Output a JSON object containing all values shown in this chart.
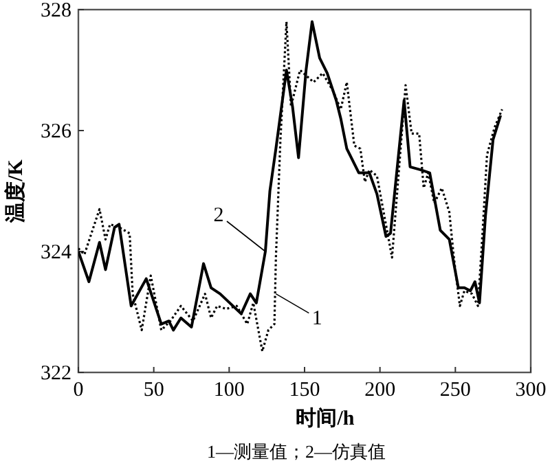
{
  "chart_data": {
    "type": "line",
    "xlabel": "时间/h",
    "ylabel": "温度/K",
    "xlim": [
      0,
      300
    ],
    "ylim": [
      322,
      328
    ],
    "xticks": [
      0,
      50,
      100,
      150,
      200,
      250,
      300
    ],
    "yticks": [
      322,
      324,
      326,
      328
    ],
    "grid": false,
    "marker": "none",
    "series": [
      {
        "color": "#000000",
        "line_style": "dotted",
        "x": [
          0,
          4,
          14,
          18,
          21,
          27,
          34,
          36,
          42,
          48,
          55,
          61,
          68,
          76,
          84,
          88,
          92,
          98,
          105,
          112,
          116,
          122,
          126,
          130,
          131,
          134,
          138,
          141,
          147,
          156,
          162,
          169,
          174,
          178,
          183,
          187,
          190,
          193,
          198,
          208,
          217,
          221,
          226,
          229,
          232,
          236,
          241,
          246,
          249,
          253,
          256,
          261,
          265,
          268,
          271,
          276,
          281
        ],
        "values": [
          324.05,
          323.95,
          324.7,
          324.2,
          324.45,
          324.4,
          324.3,
          323.3,
          322.7,
          323.6,
          322.7,
          322.85,
          323.1,
          322.85,
          323.3,
          322.9,
          323.1,
          323.05,
          323.1,
          322.8,
          323.15,
          322.35,
          322.7,
          322.8,
          323.9,
          325.85,
          327.8,
          326.4,
          327.0,
          326.8,
          326.95,
          326.65,
          326.35,
          326.8,
          325.75,
          325.7,
          325.15,
          325.35,
          325.25,
          323.9,
          326.75,
          325.95,
          325.95,
          325.05,
          325.3,
          324.8,
          325.05,
          324.65,
          323.9,
          323.1,
          323.35,
          323.3,
          323.1,
          324.3,
          325.6,
          326.05,
          326.35
        ]
      },
      {
        "color": "#000000",
        "line_style": "solid",
        "x": [
          0,
          7,
          14,
          18,
          24,
          27,
          35,
          45,
          55,
          60,
          63,
          68,
          75,
          83,
          88,
          94,
          108,
          114,
          118,
          124,
          127,
          131,
          138,
          142,
          146,
          151,
          155,
          160,
          165,
          171,
          174,
          178,
          186,
          193,
          198,
          204,
          207,
          216,
          220,
          227,
          233,
          240,
          246,
          252,
          256,
          260,
          263,
          266,
          270,
          275,
          280
        ],
        "values": [
          324.0,
          323.5,
          324.15,
          323.7,
          324.4,
          324.45,
          323.1,
          323.55,
          322.8,
          322.85,
          322.7,
          322.9,
          322.75,
          323.8,
          323.4,
          323.3,
          322.97,
          323.3,
          323.15,
          324.0,
          325.0,
          325.7,
          327.0,
          326.4,
          325.55,
          327.0,
          327.8,
          327.2,
          326.95,
          326.5,
          326.2,
          325.7,
          325.3,
          325.3,
          324.95,
          324.25,
          324.3,
          326.5,
          325.4,
          325.35,
          325.3,
          324.35,
          324.2,
          323.4,
          323.4,
          323.35,
          323.5,
          323.15,
          324.6,
          325.85,
          326.25
        ]
      }
    ],
    "annotations": [
      {
        "text": "2",
        "x": 124,
        "y": 324.0
      },
      {
        "text": "1",
        "x": 131,
        "y": 323.3
      },
      "1—测量值；2—仿真值"
    ]
  }
}
